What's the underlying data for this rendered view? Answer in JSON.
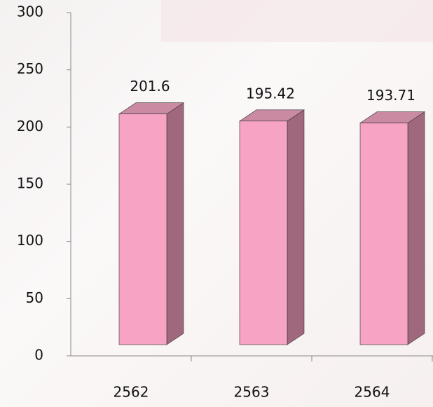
{
  "chart_data": {
    "type": "bar3d",
    "categories": [
      "2562",
      "2563",
      "2564"
    ],
    "values": [
      201.6,
      195.42,
      193.71
    ],
    "color": "#f7a3c4",
    "side_color": "#a0687c",
    "top_color": "#c98aa2",
    "ylim": [
      0,
      300
    ],
    "yticks": [
      0,
      50,
      100,
      150,
      200,
      250,
      300
    ]
  }
}
